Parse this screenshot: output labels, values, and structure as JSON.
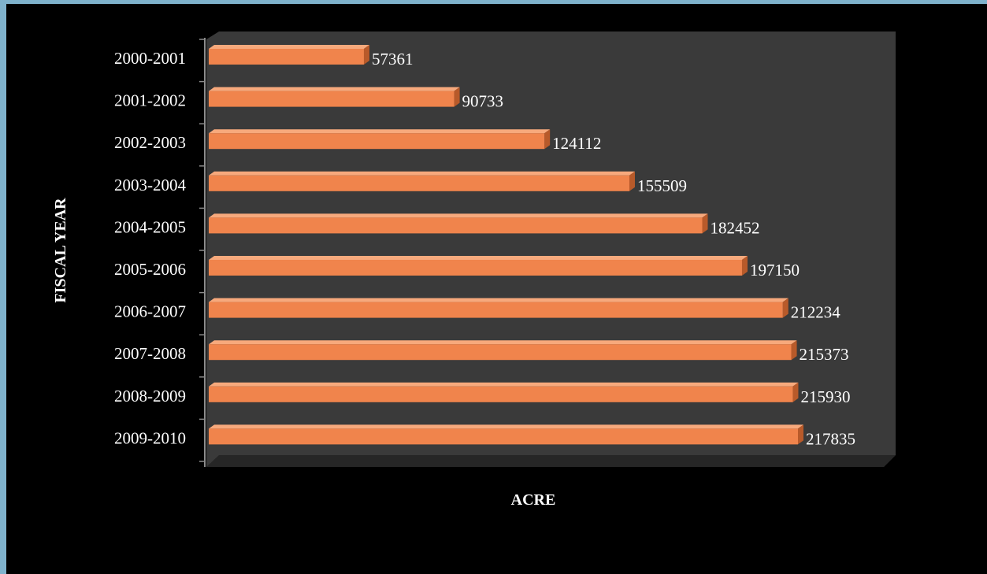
{
  "colors": {
    "background": "#000000",
    "frame_border": "#7fb2cc",
    "plot_back_wall": "#3a3a3a",
    "plot_floor": "#262626",
    "bar_front": "#f0844c",
    "bar_top": "#f7a97c",
    "bar_side": "#b85a2a",
    "text": "#ffffff"
  },
  "chart_data": {
    "type": "bar",
    "orientation": "horizontal",
    "style": "3d",
    "categories": [
      "2000-2001",
      "2001-2002",
      "2002-2003",
      "2003-2004",
      "2004-2005",
      "2005-2006",
      "2006-2007",
      "2007-2008",
      "2008-2009",
      "2009-2010"
    ],
    "values": [
      57361,
      90733,
      124112,
      155509,
      182452,
      197150,
      212234,
      215373,
      215930,
      217835
    ],
    "xlabel": "ACRE",
    "ylabel": "FISCAL YEAR",
    "xlim": [
      0,
      217835
    ],
    "grid": false,
    "legend": "none"
  }
}
